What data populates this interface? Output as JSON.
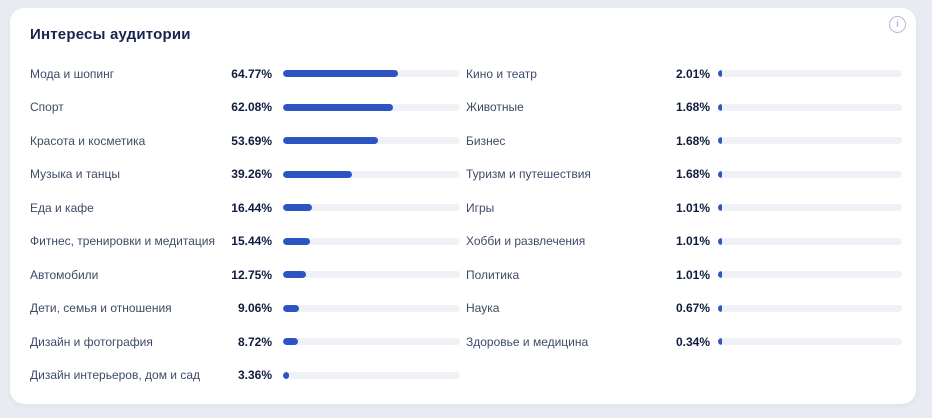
{
  "card": {
    "title": "Интересы аудитории"
  },
  "icons": {
    "info_glyph": "i"
  },
  "colors": {
    "accent": "#2e54c4",
    "bar_track": "#eef1f6",
    "title_text": "#16254e",
    "label_text": "#3e4a68",
    "value_text": "#101c3f",
    "page_background": "#e9ebf2",
    "card_background": "#ffffff"
  },
  "chart_data": {
    "type": "bar",
    "orientation": "horizontal",
    "title": "Интересы аудитории",
    "unit": "%",
    "xlim": [
      0,
      100
    ],
    "grid": false,
    "legend": false,
    "columns": [
      {
        "items": [
          {
            "label": "Мода и шопинг",
            "value": 64.77,
            "display": "64.77%"
          },
          {
            "label": "Спорт",
            "value": 62.08,
            "display": "62.08%"
          },
          {
            "label": "Красота и косметика",
            "value": 53.69,
            "display": "53.69%"
          },
          {
            "label": "Музыка и танцы",
            "value": 39.26,
            "display": "39.26%"
          },
          {
            "label": "Еда и кафе",
            "value": 16.44,
            "display": "16.44%"
          },
          {
            "label": "Фитнес, тренировки и медитация",
            "value": 15.44,
            "display": "15.44%"
          },
          {
            "label": "Автомобили",
            "value": 12.75,
            "display": "12.75%"
          },
          {
            "label": "Дети, семья и отношения",
            "value": 9.06,
            "display": "9.06%"
          },
          {
            "label": "Дизайн и фотография",
            "value": 8.72,
            "display": "8.72%"
          },
          {
            "label": "Дизайн интерьеров, дом и сад",
            "value": 3.36,
            "display": "3.36%"
          }
        ]
      },
      {
        "items": [
          {
            "label": "Кино и театр",
            "value": 2.01,
            "display": "2.01%"
          },
          {
            "label": "Животные",
            "value": 1.68,
            "display": "1.68%"
          },
          {
            "label": "Бизнес",
            "value": 1.68,
            "display": "1.68%"
          },
          {
            "label": "Туризм и путешествия",
            "value": 1.68,
            "display": "1.68%"
          },
          {
            "label": "Игры",
            "value": 1.01,
            "display": "1.01%"
          },
          {
            "label": "Хобби и развлечения",
            "value": 1.01,
            "display": "1.01%"
          },
          {
            "label": "Политика",
            "value": 1.01,
            "display": "1.01%"
          },
          {
            "label": "Наука",
            "value": 0.67,
            "display": "0.67%"
          },
          {
            "label": "Здоровье и медицина",
            "value": 0.34,
            "display": "0.34%"
          }
        ]
      }
    ]
  }
}
